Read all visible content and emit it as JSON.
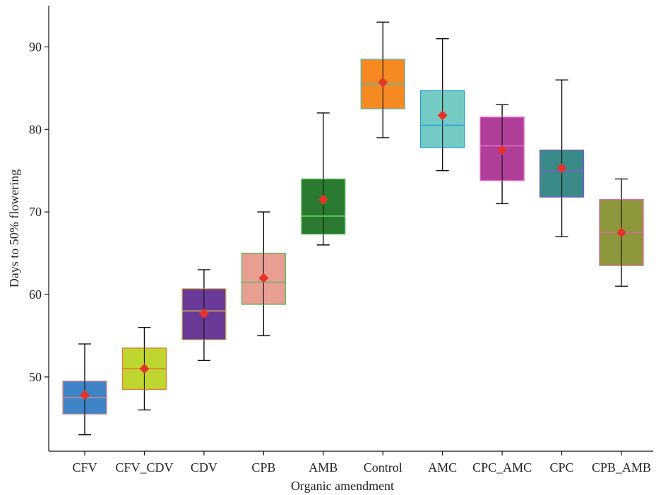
{
  "chart_data": {
    "type": "box",
    "title": "",
    "xlabel": "Organic amendment",
    "ylabel": "Days to 50% flowering",
    "ylim": [
      41,
      95
    ],
    "yticks": [
      50,
      60,
      70,
      80,
      90
    ],
    "grid": false,
    "legend": "none",
    "categories": [
      "CFV",
      "CFV_CDV",
      "CDV",
      "CPB",
      "AMB",
      "Control",
      "AMC",
      "CPC_AMC",
      "CPC",
      "CPB_AMB"
    ],
    "boxes": [
      {
        "category": "CFV",
        "min": 43,
        "q1": 45.5,
        "median": 47.5,
        "q3": 49.5,
        "max": 54,
        "mean": 47.8,
        "fill": "#3f84c6",
        "stroke": "#d98a8a"
      },
      {
        "category": "CFV_CDV",
        "min": 46,
        "q1": 48.5,
        "median": 51,
        "q3": 53.5,
        "max": 56,
        "mean": 51,
        "fill": "#c0d630",
        "stroke": "#e07a30"
      },
      {
        "category": "CDV",
        "min": 52,
        "q1": 54.5,
        "median": 58,
        "q3": 60.7,
        "max": 63,
        "mean": 57.7,
        "fill": "#6a3a98",
        "stroke": "#d8b45a"
      },
      {
        "category": "CPB",
        "min": 55,
        "q1": 58.8,
        "median": 61.5,
        "q3": 65,
        "max": 70,
        "mean": 62,
        "fill": "#e89e90",
        "stroke": "#5cb85c"
      },
      {
        "category": "AMB",
        "min": 66,
        "q1": 67.3,
        "median": 69.5,
        "q3": 74,
        "max": 82,
        "mean": 71.5,
        "fill": "#2a7a30",
        "stroke": "#6fcf6f"
      },
      {
        "category": "Control",
        "min": 79,
        "q1": 82.5,
        "median": 85.5,
        "q3": 88.5,
        "max": 93,
        "mean": 85.7,
        "fill": "#f68a22",
        "stroke": "#5ab7a8"
      },
      {
        "category": "AMC",
        "min": 75,
        "q1": 77.8,
        "median": 80.5,
        "q3": 84.7,
        "max": 91,
        "mean": 81.7,
        "fill": "#74cbc3",
        "stroke": "#2aa0d8"
      },
      {
        "category": "CPC_AMC",
        "min": 71,
        "q1": 73.8,
        "median": 78,
        "q3": 81.5,
        "max": 83,
        "mean": 77.5,
        "fill": "#b03f9a",
        "stroke": "#e070c8"
      },
      {
        "category": "CPC",
        "min": 67,
        "q1": 71.8,
        "median": 75,
        "q3": 77.5,
        "max": 86,
        "mean": 75.3,
        "fill": "#3a8a88",
        "stroke": "#7a60c8"
      },
      {
        "category": "CPB_AMB",
        "min": 61,
        "q1": 63.5,
        "median": 67.5,
        "q3": 71.5,
        "max": 74,
        "mean": 67.5,
        "fill": "#8d963a",
        "stroke": "#d86aa0"
      }
    ],
    "mean_marker_color": "#e6332a",
    "whisker_color": "#111111"
  }
}
